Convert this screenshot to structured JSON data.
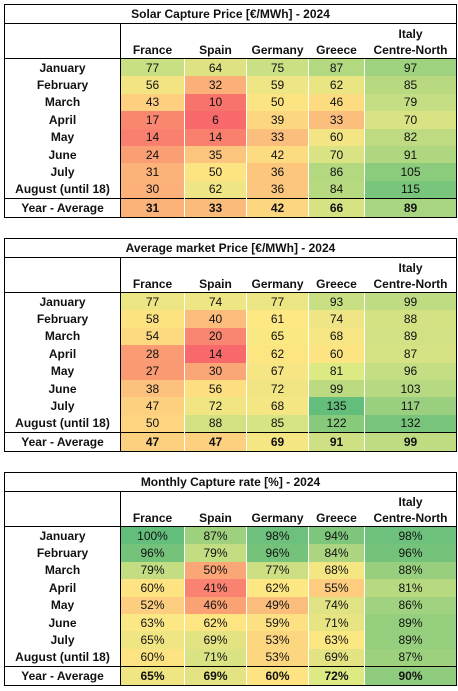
{
  "columns": [
    "France",
    "Spain",
    "Germany",
    "Greece",
    "Italy Centre-North"
  ],
  "columns_line1": [
    "",
    "",
    "",
    "",
    "Italy"
  ],
  "columns_line2": [
    "France",
    "Spain",
    "Germany",
    "Greece",
    "Centre-North"
  ],
  "tables": [
    {
      "title": "Solar Capture Price [€/MWh] - 2024",
      "rows": [
        {
          "label": "January",
          "values": [
            "77",
            "64",
            "75",
            "87",
            "97"
          ]
        },
        {
          "label": "February",
          "values": [
            "56",
            "32",
            "59",
            "62",
            "85"
          ]
        },
        {
          "label": "March",
          "values": [
            "43",
            "10",
            "50",
            "46",
            "79"
          ]
        },
        {
          "label": "April",
          "values": [
            "17",
            "6",
            "39",
            "33",
            "70"
          ]
        },
        {
          "label": "May",
          "values": [
            "14",
            "14",
            "33",
            "60",
            "82"
          ]
        },
        {
          "label": "June",
          "values": [
            "24",
            "35",
            "42",
            "70",
            "91"
          ]
        },
        {
          "label": "July",
          "values": [
            "31",
            "50",
            "36",
            "86",
            "105"
          ]
        },
        {
          "label": "August (until 18)",
          "values": [
            "30",
            "62",
            "36",
            "84",
            "115"
          ]
        }
      ],
      "average": {
        "label": "Year - Average",
        "values": [
          "31",
          "33",
          "42",
          "66",
          "89"
        ]
      },
      "colors": [
        [
          "#c8df84",
          "#dfe283",
          "#cbe084",
          "#b2d880",
          "#9fd27e"
        ],
        [
          "#f2e483",
          "#fbb07a",
          "#eee584",
          "#e9e583",
          "#b8d980"
        ],
        [
          "#fdcf7f",
          "#f8736c",
          "#fde482",
          "#fddb81",
          "#c6de83"
        ],
        [
          "#f9866f",
          "#f8696b",
          "#fdd680",
          "#fbbe7c",
          "#d9e383"
        ],
        [
          "#f9806e",
          "#f9806e",
          "#fbbe7c",
          "#f3e583",
          "#bedb81"
        ],
        [
          "#fa9e74",
          "#fcc57d",
          "#fddc81",
          "#d9e383",
          "#aed77f"
        ],
        [
          "#fbb37a",
          "#fde482",
          "#fcc77d",
          "#b4d880",
          "#8bcb7c"
        ],
        [
          "#fbb179",
          "#f0e584",
          "#fcc77d",
          "#b7d980",
          "#79c57b"
        ]
      ],
      "avg_colors": [
        "#fbb37a",
        "#fbbb7b",
        "#fdd680",
        "#d7e283",
        "#a8d57f"
      ]
    },
    {
      "title": "Average market Price [€/MWh] - 2024",
      "rows": [
        {
          "label": "January",
          "values": [
            "77",
            "74",
            "77",
            "93",
            "99"
          ]
        },
        {
          "label": "February",
          "values": [
            "58",
            "40",
            "61",
            "74",
            "88"
          ]
        },
        {
          "label": "March",
          "values": [
            "54",
            "20",
            "65",
            "68",
            "89"
          ]
        },
        {
          "label": "April",
          "values": [
            "28",
            "14",
            "62",
            "60",
            "87"
          ]
        },
        {
          "label": "May",
          "values": [
            "27",
            "30",
            "67",
            "81",
            "96"
          ]
        },
        {
          "label": "June",
          "values": [
            "38",
            "56",
            "72",
            "99",
            "103"
          ]
        },
        {
          "label": "July",
          "values": [
            "47",
            "72",
            "68",
            "135",
            "117"
          ]
        },
        {
          "label": "August (until 18)",
          "values": [
            "50",
            "88",
            "85",
            "122",
            "132"
          ]
        }
      ],
      "average": {
        "label": "Year - Average",
        "values": [
          "47",
          "47",
          "69",
          "91",
          "99"
        ]
      },
      "colors": [
        [
          "#ebe583",
          "#eee584",
          "#ebe583",
          "#c9df84",
          "#bfdc82"
        ],
        [
          "#fde282",
          "#fcbc7b",
          "#fee883",
          "#f0e584",
          "#d5e283"
        ],
        [
          "#fdd980",
          "#f98670",
          "#fae883",
          "#f6e784",
          "#d2e183"
        ],
        [
          "#fa9b73",
          "#f8696b",
          "#fde682",
          "#fde482",
          "#d6e283"
        ],
        [
          "#fa9a73",
          "#fba676",
          "#f5e683",
          "#ddea84",
          "#c4de84"
        ],
        [
          "#fcc17c",
          "#fddf82",
          "#f1e583",
          "#bcdb81",
          "#b6d981"
        ],
        [
          "#fdd07f",
          "#f1e583",
          "#f5e684",
          "#63be7b",
          "#99cf7e"
        ],
        [
          "#fdd480",
          "#d4e182",
          "#d8e383",
          "#88ca7c",
          "#78c47b"
        ]
      ],
      "avg_colors": [
        "#fdd07f",
        "#fdd07f",
        "#f4e683",
        "#cde083",
        "#bfdc82"
      ]
    },
    {
      "title": "Monthly Capture rate [%] - 2024",
      "rows": [
        {
          "label": "January",
          "values": [
            "100%",
            "87%",
            "98%",
            "94%",
            "98%"
          ]
        },
        {
          "label": "February",
          "values": [
            "96%",
            "79%",
            "96%",
            "84%",
            "96%"
          ]
        },
        {
          "label": "March",
          "values": [
            "79%",
            "50%",
            "77%",
            "68%",
            "88%"
          ]
        },
        {
          "label": "April",
          "values": [
            "60%",
            "41%",
            "62%",
            "55%",
            "81%"
          ]
        },
        {
          "label": "May",
          "values": [
            "52%",
            "46%",
            "49%",
            "74%",
            "86%"
          ]
        },
        {
          "label": "June",
          "values": [
            "63%",
            "62%",
            "59%",
            "71%",
            "89%"
          ]
        },
        {
          "label": "July",
          "values": [
            "65%",
            "69%",
            "53%",
            "63%",
            "89%"
          ]
        },
        {
          "label": "August (until 18)",
          "values": [
            "60%",
            "71%",
            "53%",
            "69%",
            "87%"
          ]
        }
      ],
      "average": {
        "label": "Year - Average",
        "values": [
          "65%",
          "69%",
          "60%",
          "72%",
          "90%"
        ]
      },
      "colors": [
        [
          "#63be7b",
          "#9ed17e",
          "#6dc17c",
          "#7dc67c",
          "#6dc17c"
        ],
        [
          "#75c37b",
          "#c2dd82",
          "#75c37b",
          "#abd580",
          "#75c37b"
        ],
        [
          "#c2dd82",
          "#fba676",
          "#cce083",
          "#f4e683",
          "#98cf7e"
        ],
        [
          "#fee382",
          "#f98370",
          "#fde782",
          "#fdcc7e",
          "#b7d980"
        ],
        [
          "#fdce7f",
          "#faa273",
          "#fbbd7c",
          "#e0e383",
          "#a1d27f"
        ],
        [
          "#f9e883",
          "#fde582",
          "#fde082",
          "#e7e583",
          "#95ce7d"
        ],
        [
          "#f0e583",
          "#e3e383",
          "#fdd680",
          "#fbe883",
          "#95ce7d"
        ],
        [
          "#fee382",
          "#dae383",
          "#fdd680",
          "#e3e383",
          "#9ed17e"
        ]
      ],
      "avg_colors": [
        "#f0e583",
        "#e3e383",
        "#fee382",
        "#ddea84",
        "#90cc7d"
      ]
    }
  ]
}
